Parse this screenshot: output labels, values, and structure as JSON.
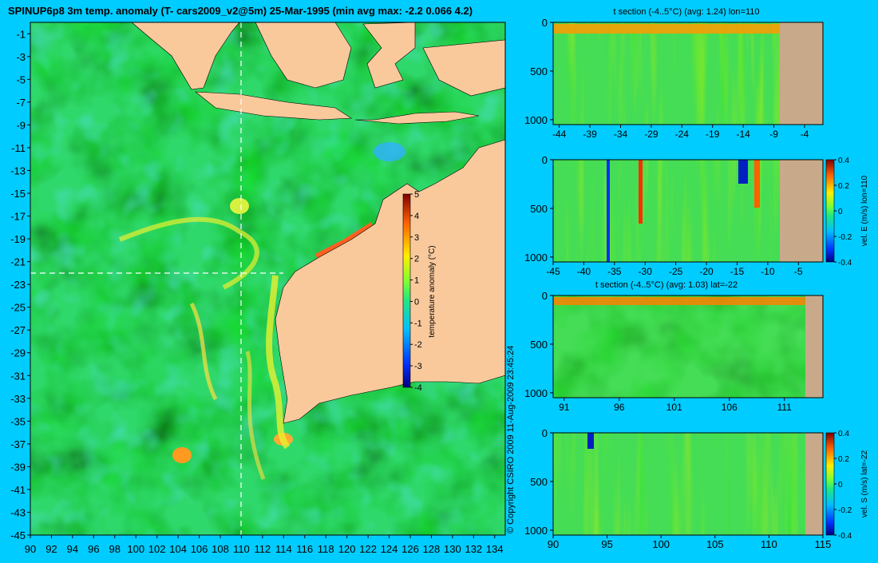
{
  "page": {
    "title": "SPINUP6p8 3m temp. anomaly (T- cars2009_v2@5m) 25-Mar-1995 (min avg max: -2.2 0.066 4.2)",
    "copyright": "© Copyright CSIRO 2009   11-Aug-2009 23:45:24",
    "colors": {
      "background": "#00ccff",
      "land": "#f9c99c",
      "section_land": "#c8aa8a"
    }
  },
  "chart_data": [
    {
      "type": "heatmap",
      "name": "main-map",
      "x_ticks": [
        "90",
        "92",
        "94",
        "96",
        "98",
        "100",
        "102",
        "104",
        "106",
        "108",
        "110",
        "112",
        "114",
        "116",
        "118",
        "120",
        "122",
        "124",
        "126",
        "128",
        "130",
        "132",
        "134"
      ],
      "y_ticks": [
        "-1",
        "-3",
        "-5",
        "-7",
        "-9",
        "-11",
        "-13",
        "-15",
        "-17",
        "-19",
        "-21",
        "-23",
        "-25",
        "-27",
        "-29",
        "-31",
        "-33",
        "-35",
        "-37",
        "-39",
        "-41",
        "-43",
        "-45"
      ],
      "xlim": [
        90,
        135
      ],
      "ylim": [
        -45,
        0
      ],
      "crosshair": {
        "lon": 110,
        "lat": -22
      },
      "colorbar": {
        "label": "temperature anomaly (°C)",
        "ticks": [
          "5",
          "4",
          "3",
          "2",
          "1",
          "0",
          "-1",
          "-2",
          "-3",
          "-4"
        ],
        "range": [
          -4,
          5
        ]
      }
    },
    {
      "type": "heatmap",
      "name": "t-section-lon",
      "title": "t section (-4..5°C) (avg: 1.24) lon=110",
      "x_ticks": [
        "-44",
        "-39",
        "-34",
        "-29",
        "-24",
        "-19",
        "-14",
        "-9",
        "-4"
      ],
      "y_ticks": [
        "0",
        "500",
        "1000"
      ],
      "xlim": [
        -45,
        -1
      ],
      "ylim": [
        1050,
        0
      ]
    },
    {
      "type": "heatmap",
      "name": "vel-e-section",
      "x_ticks": [
        "-45",
        "-40",
        "-35",
        "-30",
        "-25",
        "-20",
        "-15",
        "-10",
        "-5"
      ],
      "y_ticks": [
        "0",
        "500",
        "1000"
      ],
      "xlim": [
        -45,
        -1
      ],
      "ylim": [
        1050,
        0
      ],
      "colorbar": {
        "label": "vel. E (m/s) lon=110",
        "ticks": [
          "0.4",
          "0.2",
          "0",
          "-0.2",
          "-0.4"
        ],
        "range": [
          -0.4,
          0.4
        ]
      }
    },
    {
      "type": "heatmap",
      "name": "t-section-lat",
      "title": "t section (-4..5°C) (avg: 1.03) lat=-22",
      "x_ticks": [
        "91",
        "96",
        "101",
        "106",
        "111"
      ],
      "y_ticks": [
        "0",
        "500",
        "1000"
      ],
      "xlim": [
        90,
        114.5
      ],
      "ylim": [
        1050,
        0
      ]
    },
    {
      "type": "heatmap",
      "name": "vel-s-section",
      "x_ticks": [
        "90",
        "95",
        "100",
        "105",
        "110",
        "115"
      ],
      "y_ticks": [
        "0",
        "500",
        "1000"
      ],
      "xlim": [
        90,
        115
      ],
      "ylim": [
        1050,
        0
      ],
      "colorbar": {
        "label": "vel. S (m/s) lat=-22",
        "ticks": [
          "0.4",
          "0.2",
          "0",
          "-0.2",
          "-0.4"
        ],
        "range": [
          -0.4,
          0.4
        ]
      }
    }
  ]
}
